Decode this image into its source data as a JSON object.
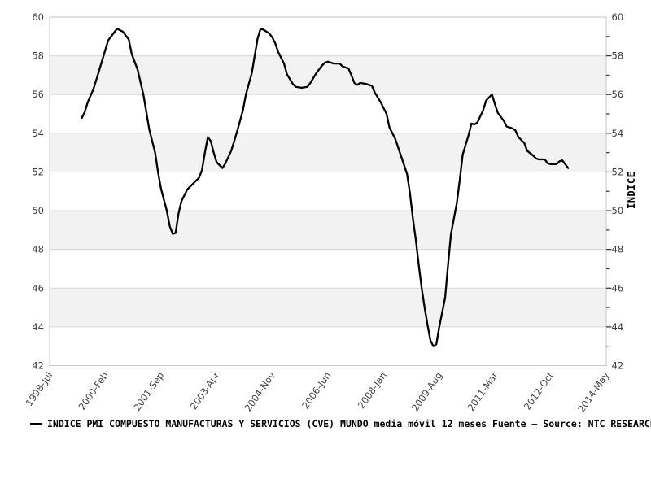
{
  "chart_data": {
    "type": "line",
    "title": "",
    "x_axis": {
      "tick_labels": [
        "1998-Jul",
        "2000-Feb",
        "2001-Sep",
        "2003-Apr",
        "2004-Nov",
        "2006-Jun",
        "2008-Jan",
        "2009-Aug",
        "2011-Mar",
        "2012-Oct",
        "2014-May"
      ],
      "tick_positions_months_from_start": [
        0,
        19,
        38,
        57,
        76,
        95,
        114,
        133,
        152,
        171,
        190
      ],
      "range_months": 190,
      "label_rotation_deg": -55
    },
    "y_axis": {
      "lim": [
        42,
        60
      ],
      "tick_step": 2,
      "tick_labels": [
        42,
        44,
        46,
        48,
        50,
        52,
        54,
        56,
        58,
        60
      ],
      "labels_on_both_sides": true,
      "minor_ticks_right_at_odd_values": true,
      "right_axis_title": "INDICE"
    },
    "grid": "horizontal",
    "shaded_bands_value_ranges": [
      [
        56,
        58
      ],
      [
        52,
        54
      ],
      [
        48,
        50
      ],
      [
        44,
        46
      ]
    ],
    "legend": {
      "label": "INDICE PMI COMPUESTO MANUFACTURAS Y SERVICIOS (CVE) MUNDO media móvil 12 meses  Fuente — Source: NTC RESEARCH",
      "line_color": "#000000"
    },
    "series": [
      {
        "name": "INDICE PMI COMPUESTO MANUFACTURAS Y SERVICIOS (CVE) MUNDO media móvil 12 meses",
        "color": "#000000",
        "points": [
          [
            "1999-Jun",
            54.8
          ],
          [
            "1999-Jul",
            55.1
          ],
          [
            "1999-Aug",
            55.6
          ],
          [
            "1999-Oct",
            56.3
          ],
          [
            "1999-Dec",
            57.3
          ],
          [
            "2000-Feb",
            58.3
          ],
          [
            "2000-Mar",
            58.8
          ],
          [
            "2000-May",
            59.2
          ],
          [
            "2000-Jun",
            59.4
          ],
          [
            "2000-Aug",
            59.25
          ],
          [
            "2000-Oct",
            58.85
          ],
          [
            "2000-Nov",
            58.1
          ],
          [
            "2001-Jan",
            57.3
          ],
          [
            "2001-Mar",
            56.0
          ],
          [
            "2001-May",
            54.2
          ],
          [
            "2001-Jul",
            53.0
          ],
          [
            "2001-Aug",
            52.0
          ],
          [
            "2001-Sep",
            51.15
          ],
          [
            "2001-Nov",
            50.0
          ],
          [
            "2001-Dec",
            49.2
          ],
          [
            "2002-Jan",
            48.8
          ],
          [
            "2002-Feb",
            48.85
          ],
          [
            "2002-Mar",
            49.85
          ],
          [
            "2002-Apr",
            50.5
          ],
          [
            "2002-Jun",
            51.1
          ],
          [
            "2002-Aug",
            51.4
          ],
          [
            "2002-Oct",
            51.7
          ],
          [
            "2002-Nov",
            52.1
          ],
          [
            "2002-Dec",
            53.0
          ],
          [
            "2003-Jan",
            53.8
          ],
          [
            "2003-Feb",
            53.6
          ],
          [
            "2003-Mar",
            53.0
          ],
          [
            "2003-Apr",
            52.5
          ],
          [
            "2003-Jun",
            52.2
          ],
          [
            "2003-Jul",
            52.45
          ],
          [
            "2003-Sep",
            53.1
          ],
          [
            "2003-Nov",
            54.1
          ],
          [
            "2004-Jan",
            55.2
          ],
          [
            "2004-Feb",
            56.0
          ],
          [
            "2004-Apr",
            57.1
          ],
          [
            "2004-May",
            58.0
          ],
          [
            "2004-Jun",
            58.9
          ],
          [
            "2004-Jul",
            59.4
          ],
          [
            "2004-Aug",
            59.35
          ],
          [
            "2004-Oct",
            59.15
          ],
          [
            "2004-Nov",
            58.95
          ],
          [
            "2004-Dec",
            58.65
          ],
          [
            "2005-Jan",
            58.2
          ],
          [
            "2005-Mar",
            57.6
          ],
          [
            "2005-Apr",
            57.05
          ],
          [
            "2005-Jun",
            56.55
          ],
          [
            "2005-Jul",
            56.4
          ],
          [
            "2005-Sep",
            56.35
          ],
          [
            "2005-Nov",
            56.4
          ],
          [
            "2005-Dec",
            56.6
          ],
          [
            "2006-Feb",
            57.1
          ],
          [
            "2006-Apr",
            57.5
          ],
          [
            "2006-May",
            57.65
          ],
          [
            "2006-Jun",
            57.7
          ],
          [
            "2006-Aug",
            57.6
          ],
          [
            "2006-Oct",
            57.6
          ],
          [
            "2006-Nov",
            57.45
          ],
          [
            "2007-Jan",
            57.35
          ],
          [
            "2007-Feb",
            57.0
          ],
          [
            "2007-Mar",
            56.6
          ],
          [
            "2007-Apr",
            56.5
          ],
          [
            "2007-May",
            56.6
          ],
          [
            "2007-Jul",
            56.55
          ],
          [
            "2007-Sep",
            56.45
          ],
          [
            "2007-Oct",
            56.1
          ],
          [
            "2007-Dec",
            55.6
          ],
          [
            "2008-Feb",
            55.0
          ],
          [
            "2008-Mar",
            54.3
          ],
          [
            "2008-May",
            53.7
          ],
          [
            "2008-Jul",
            52.8
          ],
          [
            "2008-Sep",
            51.9
          ],
          [
            "2008-Oct",
            50.9
          ],
          [
            "2008-Nov",
            49.6
          ],
          [
            "2008-Dec",
            48.5
          ],
          [
            "2009-Jan",
            47.2
          ],
          [
            "2009-Feb",
            46.0
          ],
          [
            "2009-Mar",
            45.0
          ],
          [
            "2009-Apr",
            44.1
          ],
          [
            "2009-May",
            43.3
          ],
          [
            "2009-Jun",
            43.0
          ],
          [
            "2009-Jul",
            43.1
          ],
          [
            "2009-Aug",
            44.0
          ],
          [
            "2009-Oct",
            45.5
          ],
          [
            "2009-Nov",
            47.2
          ],
          [
            "2009-Dec",
            48.8
          ],
          [
            "2010-Feb",
            50.4
          ],
          [
            "2010-Mar",
            51.6
          ],
          [
            "2010-Apr",
            52.9
          ],
          [
            "2010-Jun",
            53.9
          ],
          [
            "2010-Jul",
            54.5
          ],
          [
            "2010-Aug",
            54.45
          ],
          [
            "2010-Sep",
            54.55
          ],
          [
            "2010-Nov",
            55.2
          ],
          [
            "2010-Dec",
            55.7
          ],
          [
            "2011-Feb",
            56.0
          ],
          [
            "2011-Mar",
            55.5
          ],
          [
            "2011-Apr",
            55.05
          ],
          [
            "2011-Jun",
            54.65
          ],
          [
            "2011-Jul",
            54.35
          ],
          [
            "2011-Sep",
            54.25
          ],
          [
            "2011-Oct",
            54.15
          ],
          [
            "2011-Nov",
            53.8
          ],
          [
            "2012-Jan",
            53.5
          ],
          [
            "2012-Feb",
            53.1
          ],
          [
            "2012-Apr",
            52.85
          ],
          [
            "2012-May",
            52.7
          ],
          [
            "2012-Jun",
            52.65
          ],
          [
            "2012-Aug",
            52.65
          ],
          [
            "2012-Sep",
            52.45
          ],
          [
            "2012-Oct",
            52.4
          ],
          [
            "2012-Dec",
            52.4
          ],
          [
            "2013-Jan",
            52.55
          ],
          [
            "2013-Feb",
            52.6
          ],
          [
            "2013-Mar",
            52.4
          ],
          [
            "2013-Apr",
            52.2
          ]
        ]
      }
    ],
    "colors": {
      "background": "#ffffff",
      "band_fill": "#f2f2f2",
      "gridline": "#d7d7d7",
      "frame": "#c6c6c6",
      "tick_mark": "#333333",
      "tick_label": "#3d3d3d",
      "x_label": "#444444",
      "series_line": "#000000"
    }
  }
}
